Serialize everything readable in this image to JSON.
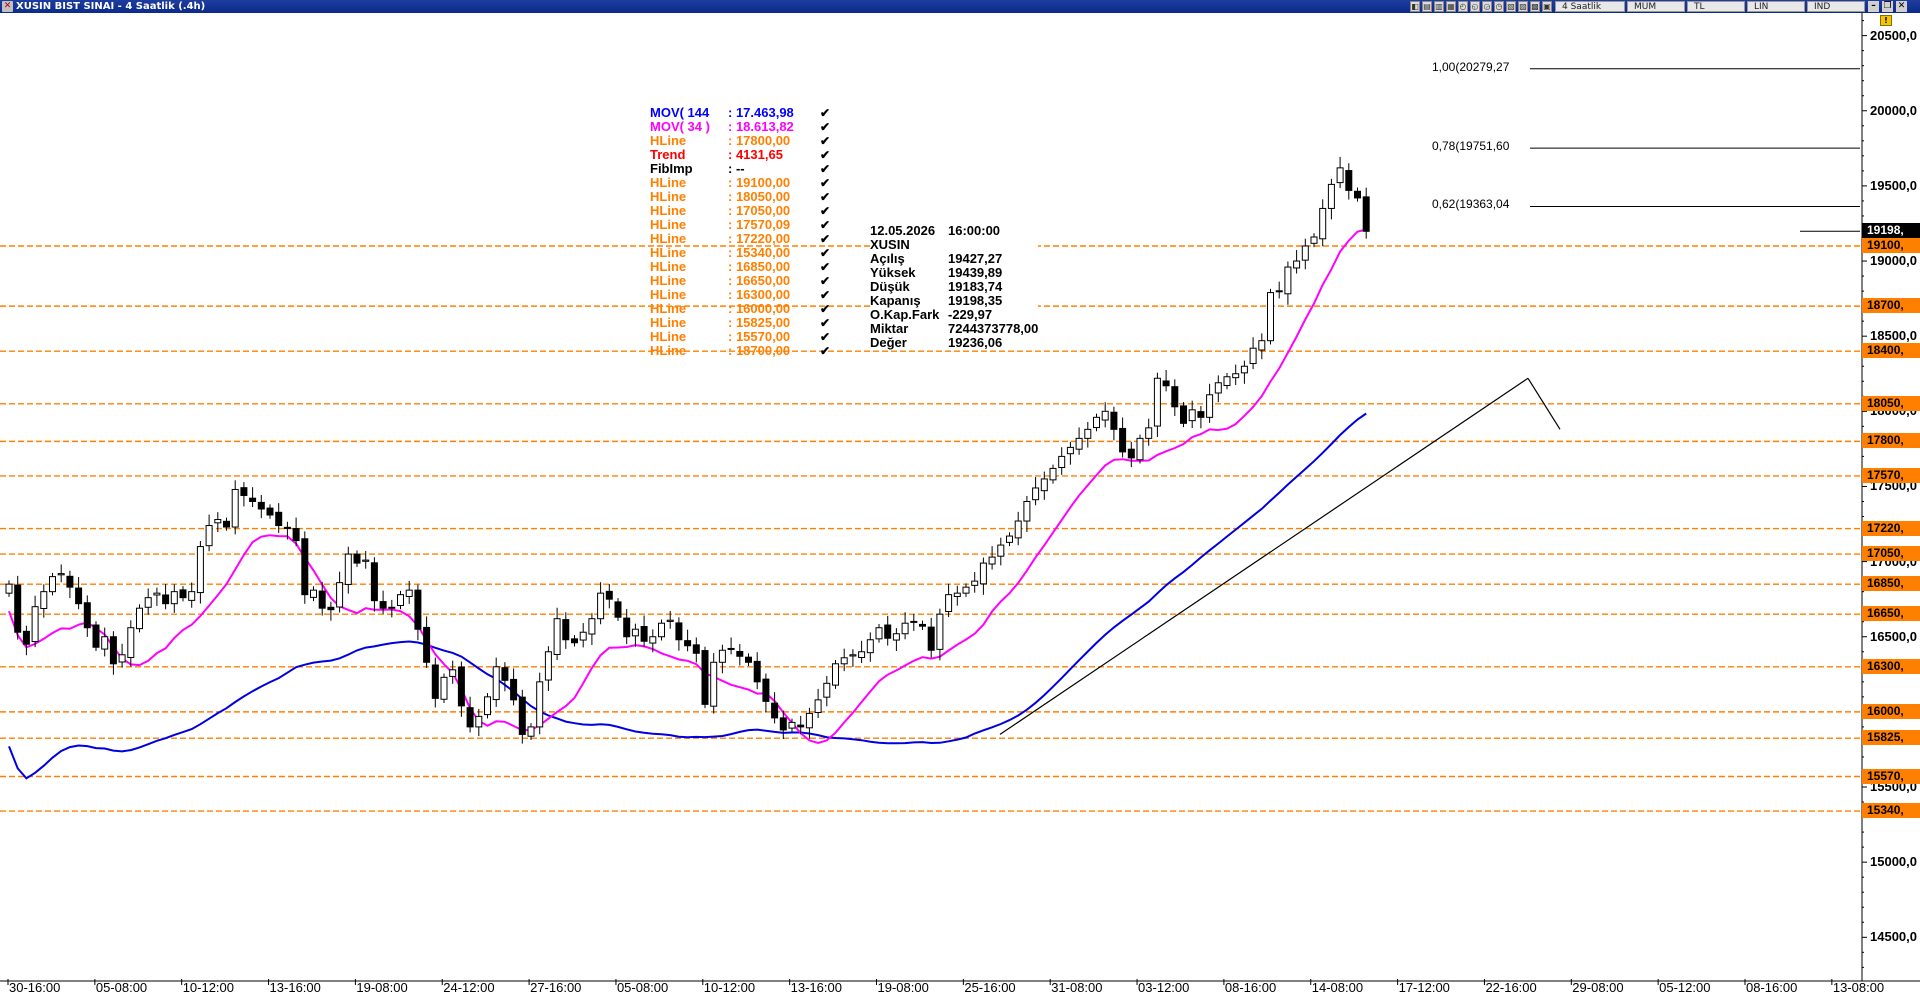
{
  "window": {
    "title": "XUSIN BIST SINAI - 4 Saatlik (.4h)",
    "period": "4 Saatlik",
    "chart_style": "MUM",
    "currency": "TL",
    "scale": "LIN",
    "mode": "IND"
  },
  "indicators": [
    {
      "label": "MOV( 144",
      "value": ": 17.463,98",
      "color": "#0000ff"
    },
    {
      "label": "MOV( 34 )",
      "value": ": 18.613,82",
      "color": "#ff00ff"
    },
    {
      "label": "HLine",
      "value": ": 17800,00",
      "color": "#ff8000"
    },
    {
      "label": "Trend",
      "value": ": 4131,65",
      "color": "#ff0000"
    },
    {
      "label": "FibImp",
      "value": ": --",
      "color": "#000000"
    },
    {
      "label": "HLine",
      "value": ": 19100,00",
      "color": "#ff8000"
    },
    {
      "label": "HLine",
      "value": ": 18050,00",
      "color": "#ff8000"
    },
    {
      "label": "HLine",
      "value": ": 17050,00",
      "color": "#ff8000"
    },
    {
      "label": "HLine",
      "value": ": 17570,09",
      "color": "#ff8000"
    },
    {
      "label": "HLine",
      "value": ": 17220,00",
      "color": "#ff8000"
    },
    {
      "label": "HLine",
      "value": ": 15340,00",
      "color": "#ff8000"
    },
    {
      "label": "HLine",
      "value": ": 16850,00",
      "color": "#ff8000"
    },
    {
      "label": "HLine",
      "value": ": 16650,00",
      "color": "#ff8000"
    },
    {
      "label": "HLine",
      "value": ": 16300,00",
      "color": "#ff8000"
    },
    {
      "label": "HLine",
      "value": ": 16000,00",
      "color": "#ff8000"
    },
    {
      "label": "HLine",
      "value": ": 15825,00",
      "color": "#ff8000"
    },
    {
      "label": "HLine",
      "value": ": 15570,00",
      "color": "#ff8000"
    },
    {
      "label": "HLine",
      "value": ": 18700,00",
      "color": "#ff8000"
    }
  ],
  "info": [
    {
      "k": "12.05.2026",
      "v": "16:00:00"
    },
    {
      "k": "XUSIN",
      "v": ""
    },
    {
      "k": "Açılış",
      "v": "19427,27"
    },
    {
      "k": "Yüksek",
      "v": "19439,89"
    },
    {
      "k": "Düşük",
      "v": "19183,74"
    },
    {
      "k": "Kapanış",
      "v": "19198,35"
    },
    {
      "k": "O.Kap.Fark",
      "v": "-229,97"
    },
    {
      "k": "Miktar",
      "v": "7244373778,00"
    },
    {
      "k": "Değer",
      "v": "19236,06"
    }
  ],
  "chart_data": {
    "type": "candlestick",
    "symbol": "XUSIN",
    "interval": "4h",
    "ylim": [
      14200,
      20650
    ],
    "y_ticks": [
      {
        "v": 14500,
        "label": "14500,0"
      },
      {
        "v": 15000,
        "label": "15000,0"
      },
      {
        "v": 15500,
        "label": "15500,0"
      },
      {
        "v": 16000,
        "label": "16000,0"
      },
      {
        "v": 16500,
        "label": "16500,0"
      },
      {
        "v": 17000,
        "label": "17000,0"
      },
      {
        "v": 17500,
        "label": "17500,0"
      },
      {
        "v": 18000,
        "label": "18000,0"
      },
      {
        "v": 18500,
        "label": "18500,0"
      },
      {
        "v": 19000,
        "label": "19000,0"
      },
      {
        "v": 19500,
        "label": "19500,0"
      },
      {
        "v": 20000,
        "label": "20000,0"
      },
      {
        "v": 20500,
        "label": "20500,0"
      }
    ],
    "x_ticks": [
      "30-16:00",
      "05-08:00",
      "10-12:00",
      "13-16:00",
      "19-08:00",
      "24-12:00",
      "27-16:00",
      "05-08:00",
      "10-12:00",
      "13-16:00",
      "19-08:00",
      "25-16:00",
      "31-08:00",
      "03-12:00",
      "08-16:00",
      "14-08:00",
      "17-12:00",
      "22-16:00",
      "29-08:00",
      "05-12:00",
      "08-16:00",
      "13-08:00"
    ],
    "hlines": [
      {
        "v": 19100,
        "label": "19100,"
      },
      {
        "v": 18700,
        "label": "18700,"
      },
      {
        "v": 18400,
        "label": "18400,"
      },
      {
        "v": 18050,
        "label": "18050,"
      },
      {
        "v": 17800,
        "label": "17800,"
      },
      {
        "v": 17570,
        "label": "17570,"
      },
      {
        "v": 17220,
        "label": "17220,"
      },
      {
        "v": 17050,
        "label": "17050,"
      },
      {
        "v": 16850,
        "label": "16850,"
      },
      {
        "v": 16650,
        "label": "16650,"
      },
      {
        "v": 16300,
        "label": "16300,"
      },
      {
        "v": 16000,
        "label": "16000,"
      },
      {
        "v": 15825,
        "label": "15825,"
      },
      {
        "v": 15570,
        "label": "15570,"
      },
      {
        "v": 15340,
        "label": "15340,"
      }
    ],
    "last_price": {
      "v": 19198,
      "label": "19198,"
    },
    "fib_levels": [
      {
        "v": 20279.27,
        "label": "1,00(20279,27"
      },
      {
        "v": 19751.6,
        "label": "0,78(19751,60"
      },
      {
        "v": 19363.04,
        "label": "0,62(19363,04"
      }
    ],
    "close": [
      16850,
      16530,
      16450,
      16700,
      16800,
      16900,
      16920,
      16830,
      16720,
      16560,
      16430,
      16500,
      16320,
      16380,
      16560,
      16690,
      16760,
      16790,
      16720,
      16800,
      16760,
      16800,
      17100,
      17240,
      17280,
      17230,
      17480,
      17440,
      17400,
      17350,
      17310,
      17240,
      17220,
      17140,
      16780,
      16810,
      16690,
      16680,
      16860,
      17050,
      16990,
      17010,
      16740,
      16690,
      16690,
      16780,
      16810,
      16550,
      16330,
      16090,
      16230,
      16280,
      16040,
      15900,
      15970,
      16100,
      16300,
      16210,
      16080,
      15850,
      15900,
      16200,
      16400,
      16620,
      16480,
      16460,
      16530,
      16620,
      16790,
      16750,
      16630,
      16500,
      16550,
      16470,
      16500,
      16590,
      16610,
      16480,
      16440,
      16390,
      16050,
      16330,
      16410,
      16420,
      16370,
      16330,
      16200,
      16070,
      15960,
      15880,
      15930,
      15900,
      15990,
      16080,
      16190,
      16320,
      16360,
      16380,
      16400,
      16480,
      16560,
      16490,
      16520,
      16590,
      16600,
      16570,
      16410,
      16650,
      16780,
      16790,
      16830,
      16870,
      16990,
      17030,
      17110,
      17170,
      17270,
      17400,
      17490,
      17550,
      17620,
      17700,
      17760,
      17820,
      17880,
      17960,
      18000,
      17880,
      17730,
      17690,
      17820,
      17890,
      18220,
      18170,
      18030,
      17920,
      18010,
      17960,
      18110,
      18190,
      18230,
      18250,
      18300,
      18420,
      18470,
      18790,
      18800,
      18960,
      19000,
      19100,
      19160,
      19350,
      19510,
      19620,
      19470,
      19420,
      19198
    ]
  }
}
